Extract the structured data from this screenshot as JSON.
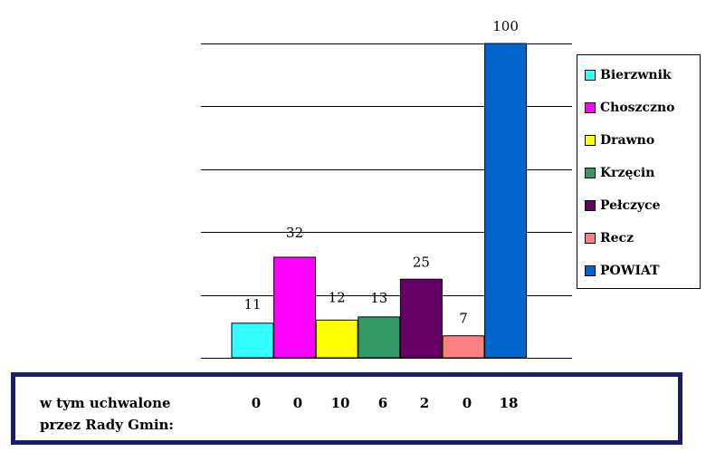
{
  "chart_data": {
    "type": "bar",
    "categories": [
      "Bierzwnik",
      "Choszczno",
      "Drawno",
      "Krzęcin",
      "Pełczyce",
      "Recz",
      "POWIAT"
    ],
    "values": [
      11,
      32,
      12,
      13,
      25,
      7,
      100
    ],
    "ylim": [
      0,
      100
    ],
    "grid": true,
    "legend": {
      "position": "right",
      "entries": [
        {
          "label": "Bierzwnik",
          "color": "#33ffff"
        },
        {
          "label": "Choszczno",
          "color": "#ff00ff"
        },
        {
          "label": "Drawno",
          "color": "#ffff00"
        },
        {
          "label": "Krzęcin",
          "color": "#339966"
        },
        {
          "label": "Pełczyce",
          "color": "#660066"
        },
        {
          "label": "Recz",
          "color": "#ff8080"
        },
        {
          "label": "POWIAT",
          "color": "#0066cc"
        }
      ]
    }
  },
  "table": {
    "row_label_line1": "w tym uchwalone",
    "row_label_line2": "przez Rady Gmin:",
    "values": [
      "0",
      "0",
      "10",
      "6",
      "2",
      "0",
      "18"
    ]
  }
}
